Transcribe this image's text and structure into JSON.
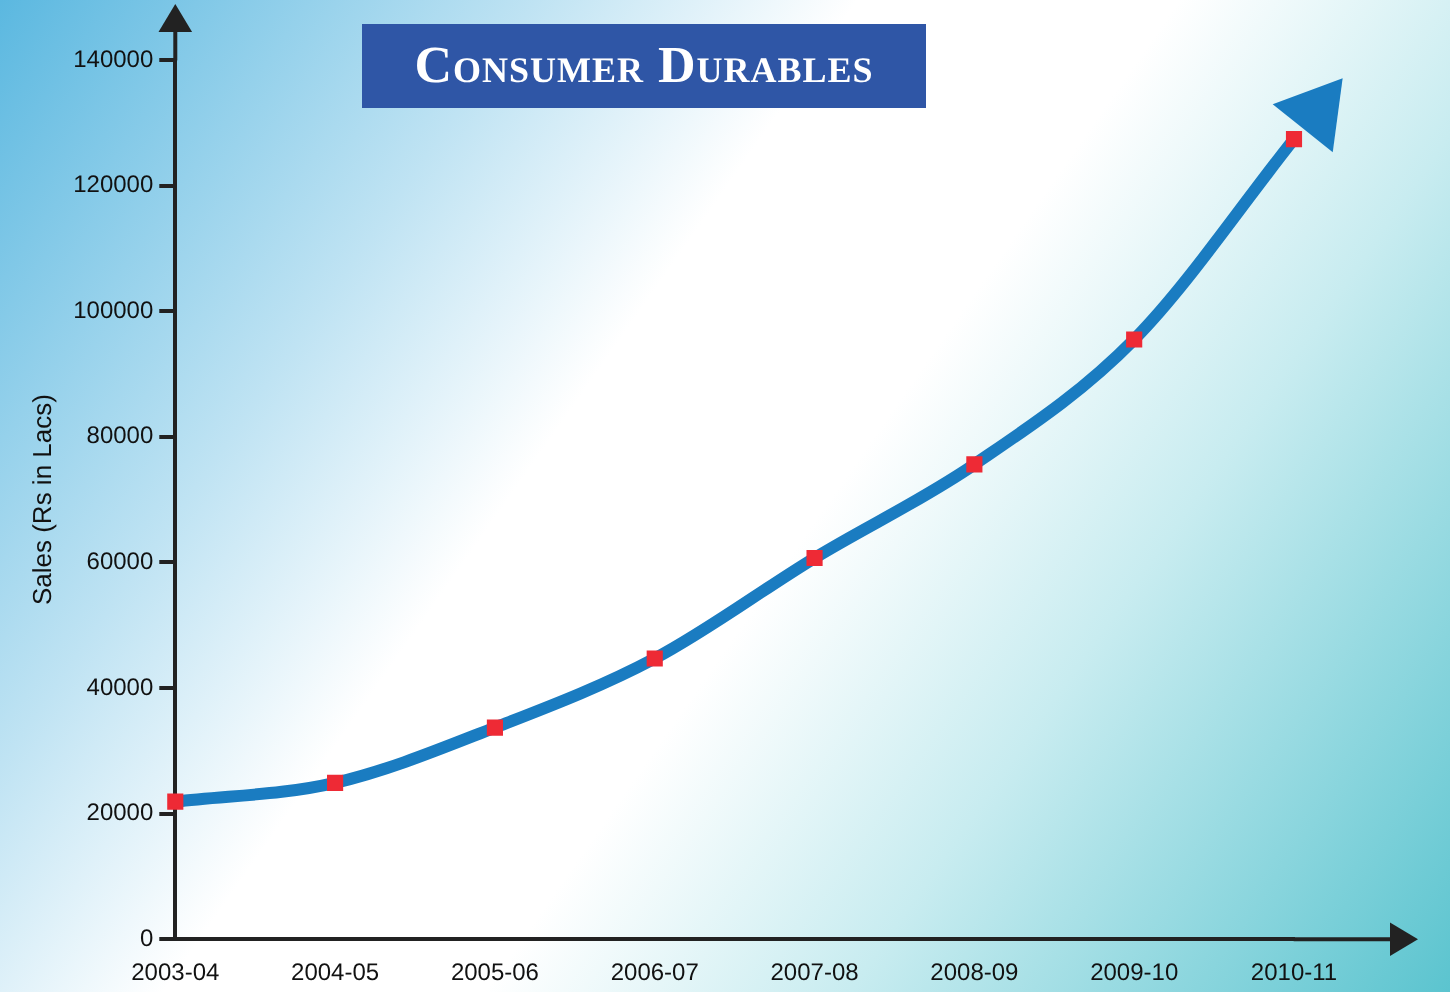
{
  "chart_data": {
    "type": "line",
    "title": "Consumer Durables",
    "ylabel": "Sales (Rs in Lacs)",
    "categories": [
      "2003-04",
      "2004-05",
      "2005-06",
      "2006-07",
      "2007-08",
      "2008-09",
      "2009-10",
      "2010-11"
    ],
    "series": [
      {
        "color": "#1a7cc1",
        "values": [
          21900,
          24900,
          33700,
          44700,
          60700,
          75600,
          95500,
          127400
        ]
      }
    ],
    "marker": "square",
    "ylim": [
      0,
      140000
    ],
    "yticks": [
      0,
      20000,
      40000,
      60000,
      80000,
      100000,
      120000,
      140000
    ],
    "grid": false,
    "legend": false
  }
}
